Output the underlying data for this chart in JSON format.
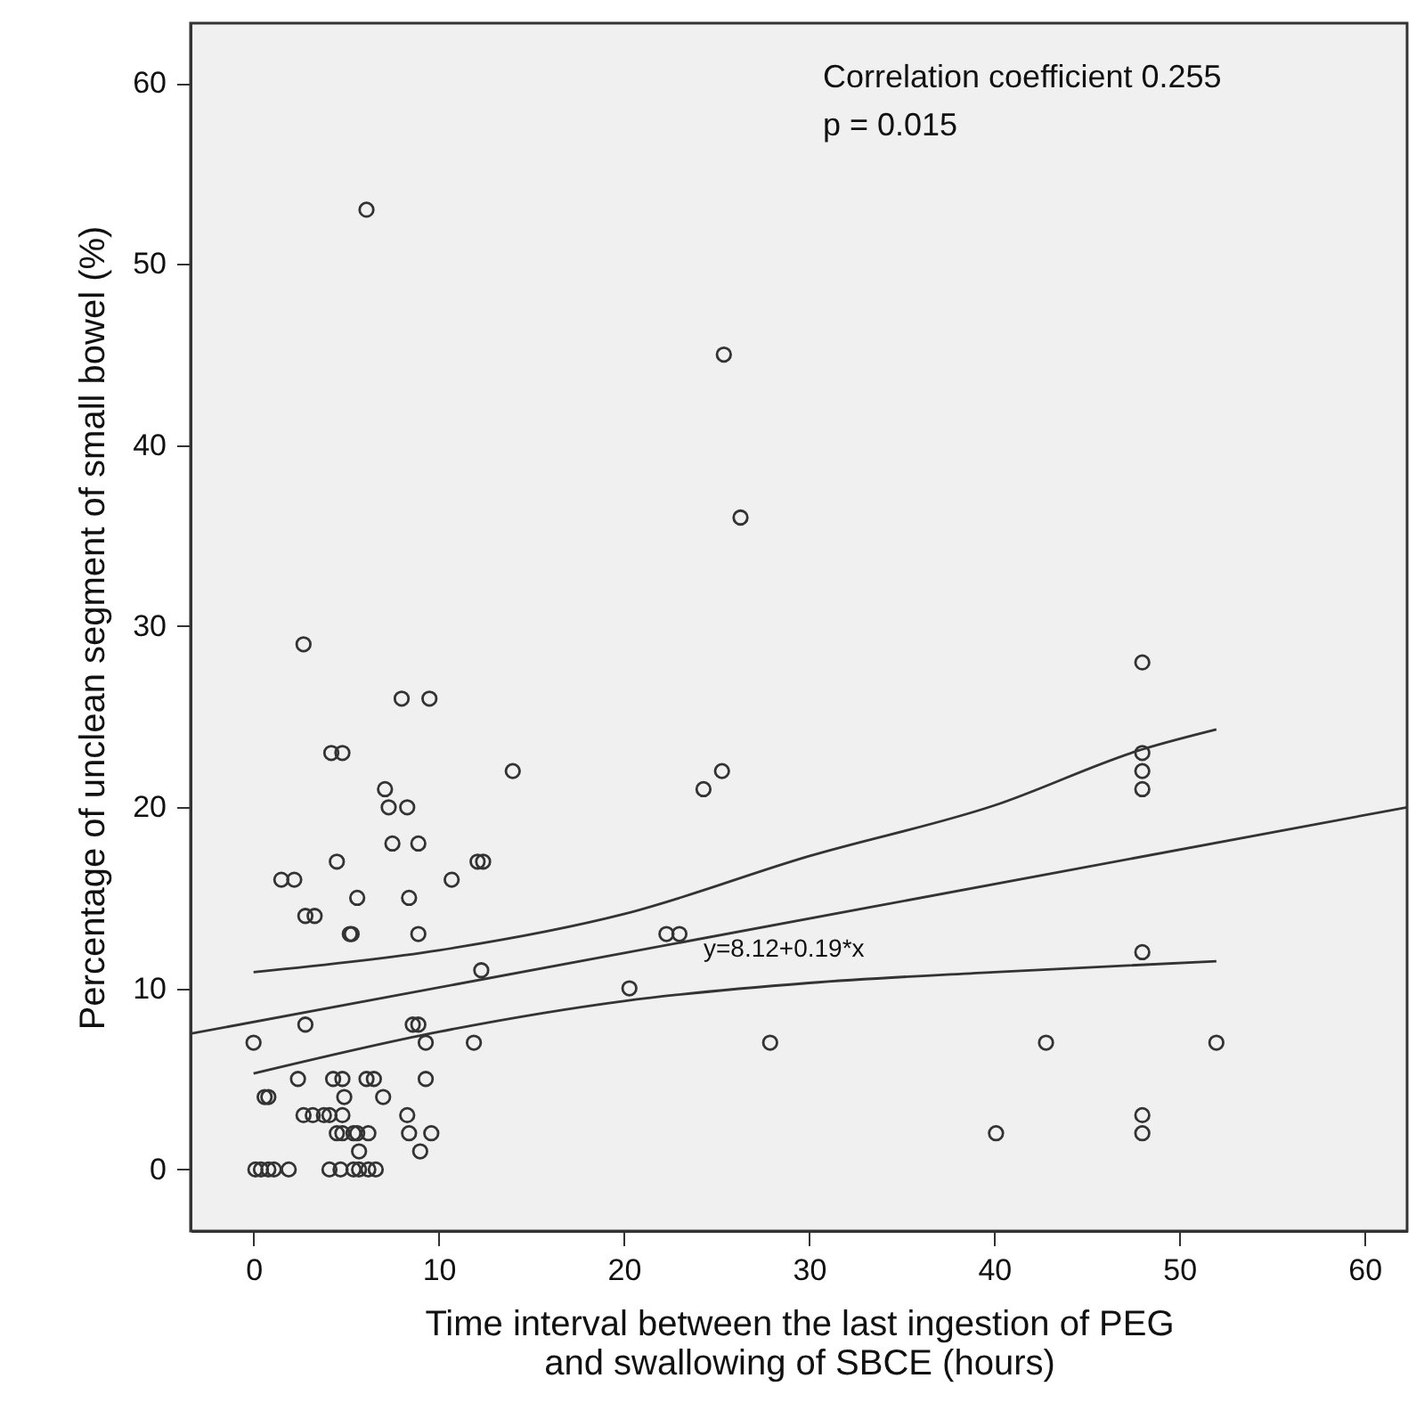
{
  "chart_data": {
    "type": "scatter",
    "xlabel": "Time interval between the last ingestion of PEG\nand swallowing of SBCE (hours)",
    "ylabel": "Percentage of unclean segment of small bowel (%)",
    "annotations": [
      "Correlation coefficient 0.255",
      "p = 0.015",
      "y=8.12+0.19*x"
    ],
    "xlim": [
      -3.4,
      62.3
    ],
    "ylim": [
      -3.4,
      63.3
    ],
    "xticks": [
      0,
      10,
      20,
      30,
      40,
      50,
      60
    ],
    "yticks": [
      0,
      10,
      20,
      30,
      40,
      50,
      60
    ],
    "grid": false,
    "marker": "circle",
    "series": [
      {
        "color": "#333333",
        "x": [
          8.0,
          9.5,
          4.2,
          4.8,
          14.0,
          7.1,
          7.3,
          8.3,
          7.5,
          8.9,
          4.5,
          12.1,
          12.4,
          1.5,
          2.2,
          10.7,
          5.6,
          8.4,
          2.8,
          3.3,
          5.2,
          5.3,
          8.9,
          12.3,
          20.3,
          22.3,
          23.0,
          0,
          2.8,
          8.6,
          8.9,
          9.3,
          11.9,
          2.4,
          4.3,
          4.8,
          6.1,
          6.5,
          9.3,
          0.6,
          0.8,
          4.9,
          7.0,
          2.7,
          3.2,
          3.8,
          4.1,
          4.8,
          8.3,
          4.5,
          4.8,
          5.4,
          5.6,
          6.2,
          8.4,
          9.6,
          5.7,
          9.0,
          0.1,
          0.4,
          0.8,
          1.1,
          1.9,
          4.1,
          4.7,
          5.4,
          5.7,
          6.2,
          6.6,
          24.3,
          25.3,
          48,
          48,
          48,
          48,
          48,
          27.9,
          42.8,
          52.0,
          40.1,
          48,
          48,
          25.4,
          26.3,
          6.1,
          2.7
        ],
        "values": [
          26,
          26,
          23,
          23,
          22,
          21,
          20,
          20,
          18,
          18,
          17,
          17,
          17,
          16,
          16,
          16,
          15,
          15,
          14,
          14,
          13,
          13,
          13,
          11,
          10,
          13,
          13,
          7,
          8,
          8,
          8,
          7,
          7,
          5,
          5,
          5,
          5,
          5,
          5,
          4,
          4,
          4,
          4,
          3,
          3,
          3,
          3,
          3,
          3,
          2,
          2,
          2,
          2,
          2,
          2,
          2,
          1,
          1,
          0,
          0,
          0,
          0,
          0,
          0,
          0,
          0,
          0,
          0,
          0,
          21,
          22,
          28,
          23,
          22,
          21,
          12,
          7,
          7,
          7,
          2,
          3,
          2,
          45,
          36,
          53,
          29
        ]
      },
      {
        "type": "line",
        "marker": "none",
        "color": "#333333",
        "x": [
          -3.4,
          62.3
        ],
        "values": [
          7.5,
          20.0
        ]
      },
      {
        "type": "line",
        "marker": "none",
        "color": "#333333",
        "x": [
          0,
          10,
          20,
          30,
          40,
          48,
          52
        ],
        "values": [
          10.9,
          12.1,
          14.1,
          17.3,
          20.1,
          23.2,
          24.3
        ]
      },
      {
        "type": "line",
        "marker": "none",
        "color": "#333333",
        "x": [
          0,
          10,
          20,
          30,
          40,
          52
        ],
        "values": [
          5.3,
          7.6,
          9.3,
          10.3,
          10.9,
          11.5
        ]
      }
    ]
  }
}
